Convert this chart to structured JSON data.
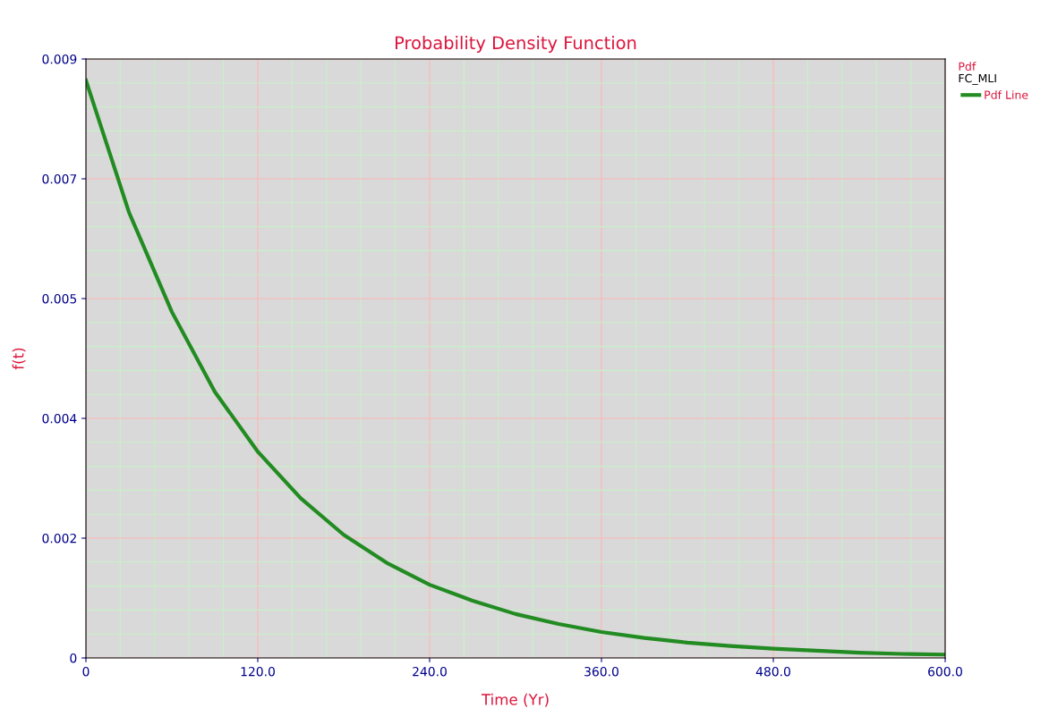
{
  "chart_data": {
    "type": "line",
    "title": "Probability Density Function",
    "xlabel": "Time (Yr)",
    "ylabel": "f(t)",
    "legend_title": "Pdf",
    "annotations": [
      "FC_MLI"
    ],
    "x": [
      0,
      30,
      60,
      90,
      120,
      150,
      180,
      210,
      240,
      270,
      300,
      330,
      360,
      390,
      420,
      450,
      480,
      510,
      540,
      570,
      600
    ],
    "series": [
      {
        "name": "Pdf Line",
        "color": "#228b22",
        "values": [
          0.00868,
          0.0067,
          0.0052,
          0.004,
          0.0031,
          0.0024,
          0.00185,
          0.00143,
          0.0011,
          0.00086,
          0.00066,
          0.00051,
          0.00039,
          0.0003,
          0.00023,
          0.00018,
          0.00014,
          0.00011,
          8e-05,
          6e-05,
          5e-05
        ]
      }
    ],
    "xlim": [
      0,
      600
    ],
    "xticks": [
      {
        "value": 0,
        "label": "0"
      },
      {
        "value": 120,
        "label": "120.0"
      },
      {
        "value": 240,
        "label": "240.0"
      },
      {
        "value": 360,
        "label": "360.0"
      },
      {
        "value": 480,
        "label": "480.0"
      },
      {
        "value": 600,
        "label": "600.0"
      }
    ],
    "ylim": [
      0,
      0.009
    ],
    "yticks": [
      {
        "value": 0,
        "label": "0"
      },
      {
        "value": 0.0018,
        "label": "0.002"
      },
      {
        "value": 0.0036,
        "label": "0.004"
      },
      {
        "value": 0.0054,
        "label": "0.005"
      },
      {
        "value": 0.0072,
        "label": "0.007"
      },
      {
        "value": 0.009,
        "label": "0.009"
      }
    ],
    "grid": true,
    "legend": "right",
    "marker": "none",
    "line_style": "solid"
  }
}
